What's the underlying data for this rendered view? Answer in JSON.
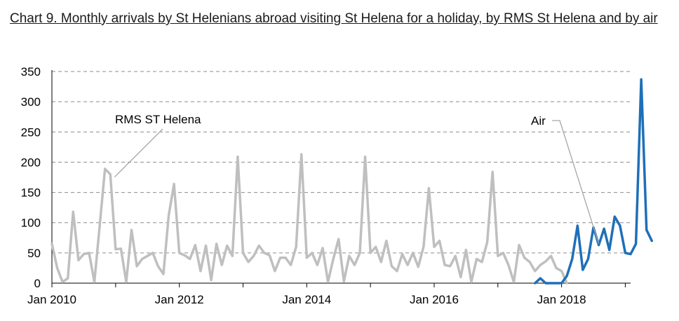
{
  "chart_data": {
    "type": "line",
    "title": "Chart 9. Monthly arrivals by St Helenians abroad visiting St Helena for a holiday, by RMS St Helena and by air",
    "xlabel": "",
    "ylabel": "",
    "ylim": [
      0,
      350
    ],
    "y_ticks": [
      0,
      50,
      100,
      150,
      200,
      250,
      300,
      350
    ],
    "x_ticks": [
      {
        "label": "Jan 2010",
        "date": "2010-01"
      },
      {
        "label": "Jan 2012",
        "date": "2012-01"
      },
      {
        "label": "Jan 2014",
        "date": "2014-01"
      },
      {
        "label": "Jan 2016",
        "date": "2016-01"
      },
      {
        "label": "Jan 2018",
        "date": "2018-01"
      }
    ],
    "x_range": [
      "2010-01",
      "2019-02"
    ],
    "grid": "horizontal dashed",
    "legend": "none",
    "series": [
      {
        "name": "RMS ST Helena",
        "color": "#bfbfbf",
        "x_start": "2010-01",
        "values": [
          65,
          25,
          2,
          8,
          118,
          38,
          48,
          50,
          2,
          95,
          189,
          180,
          56,
          57,
          2,
          88,
          28,
          40,
          45,
          50,
          28,
          15,
          112,
          164,
          50,
          46,
          40,
          63,
          20,
          62,
          5,
          65,
          30,
          62,
          45,
          209,
          50,
          35,
          45,
          62,
          50,
          46,
          20,
          42,
          42,
          30,
          60,
          213,
          42,
          50,
          30,
          58,
          2,
          40,
          73,
          3,
          45,
          30,
          50,
          209,
          50,
          60,
          35,
          70,
          28,
          20,
          48,
          30,
          50,
          27,
          60,
          157,
          60,
          70,
          30,
          28,
          45,
          10,
          55,
          2,
          40,
          35,
          68,
          184,
          45,
          50,
          30,
          2,
          63,
          42,
          35,
          20,
          30,
          36,
          45,
          25,
          20,
          0
        ]
      },
      {
        "name": "Air",
        "color": "#1f6fb8",
        "x_start": "2017-08",
        "values": [
          0,
          8,
          0,
          0,
          0,
          0,
          12,
          40,
          95,
          22,
          40,
          92,
          63,
          90,
          55,
          110,
          95,
          50,
          48,
          65,
          337,
          88,
          70
        ]
      }
    ],
    "annotations": [
      {
        "text": "RMS ST Helena",
        "series": "RMS ST Helena",
        "points_to": "2010-12"
      },
      {
        "text": "Air",
        "series": "Air",
        "points_to": "2018-08"
      }
    ]
  }
}
